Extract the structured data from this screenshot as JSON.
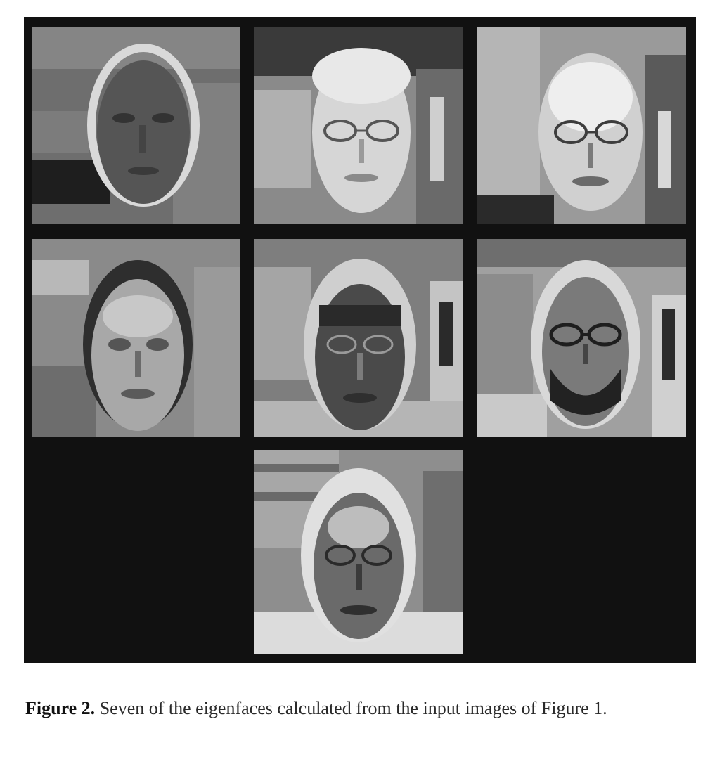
{
  "figure": {
    "panels": [
      {
        "name": "eigenface-1",
        "tone": "dark",
        "glasses": false
      },
      {
        "name": "eigenface-2",
        "tone": "light",
        "glasses": true
      },
      {
        "name": "eigenface-3",
        "tone": "light",
        "glasses": true
      },
      {
        "name": "eigenface-4",
        "tone": "mid",
        "glasses": false
      },
      {
        "name": "eigenface-5",
        "tone": "mid",
        "glasses": true
      },
      {
        "name": "eigenface-6",
        "tone": "mid",
        "glasses": true
      },
      {
        "name": "eigenface-7",
        "tone": "mid",
        "glasses": true
      }
    ],
    "colors": {
      "grid_border": "#111111",
      "empty_cell": "#151515"
    }
  },
  "caption": {
    "label": "Figure 2.",
    "text": "Seven of the eigenfaces calculated from the input images of Figure 1."
  }
}
